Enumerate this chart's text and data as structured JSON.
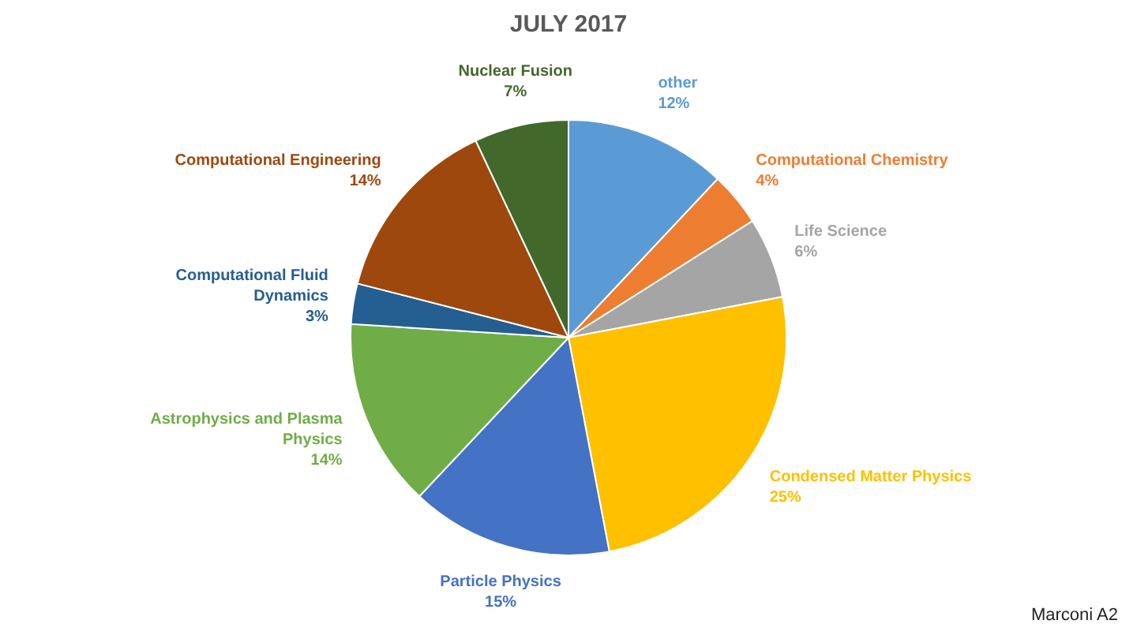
{
  "chart_data": {
    "type": "pie",
    "title": "JULY 2017",
    "categories": [
      "other",
      "Computational Chemistry",
      "Life Science",
      "Condensed Matter Physics",
      "Particle Physics",
      "Astrophysics and Plasma Physics",
      "Computational Fluid Dynamics",
      "Computational Engineering",
      "Nuclear Fusion"
    ],
    "values": [
      12,
      4,
      6,
      25,
      15,
      14,
      3,
      14,
      7
    ],
    "colors": [
      "#5b9bd5",
      "#ed7d31",
      "#a5a5a5",
      "#ffc000",
      "#4472c4",
      "#70ad47",
      "#255e91",
      "#9e480e",
      "#43682b"
    ],
    "value_labels": [
      "12%",
      "4%",
      "6%",
      "25%",
      "15%",
      "14%",
      "3%",
      "14%",
      "7%"
    ],
    "annotations": [
      "Marconi A2"
    ]
  }
}
